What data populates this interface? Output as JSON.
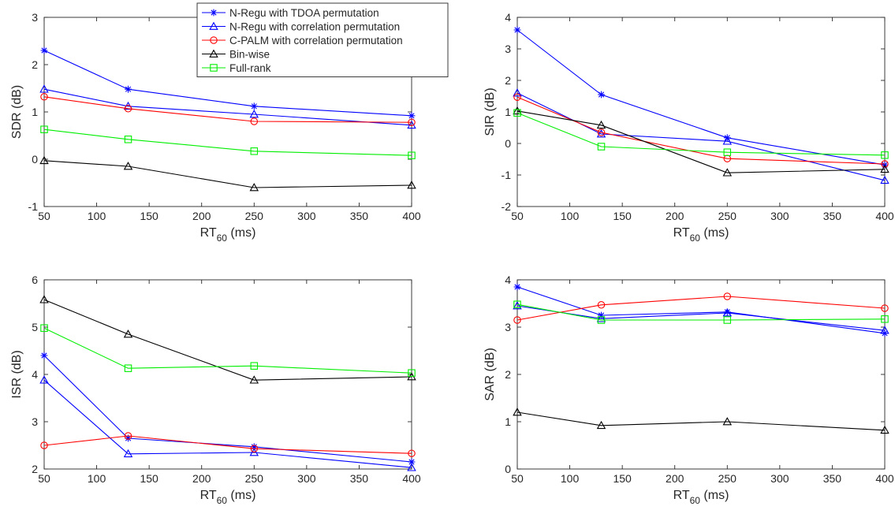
{
  "colors": {
    "n_regu_tdoa": "#0000ff",
    "n_regu_corr": "#0000ff",
    "cpalm": "#ff0000",
    "binwise": "#000000",
    "fullrank": "#00ee00"
  },
  "legend": {
    "placement": "top-right of first panel",
    "entries": [
      "N-Regu with TDOA permutation",
      "N-Regu with correlation permutation",
      "C-PALM with correlation permutation",
      "Bin-wise",
      "Full-rank"
    ]
  },
  "chart_data": [
    {
      "type": "line",
      "title": "",
      "xlabel": "RT",
      "xlabel_sub": "60",
      "xlabel_unit": " (ms)",
      "ylabel": "SDR (dB)",
      "x": [
        50,
        130,
        250,
        400
      ],
      "xlim": [
        50,
        400
      ],
      "xticks": [
        50,
        100,
        150,
        200,
        250,
        300,
        350,
        400
      ],
      "ylim": [
        -1,
        3
      ],
      "yticks": [
        -1,
        0,
        1,
        2,
        3
      ],
      "grid": false,
      "series": [
        {
          "name": "N-Regu with TDOA permutation",
          "marker": "star",
          "color": "#0000ff",
          "values": [
            2.3,
            1.48,
            1.12,
            0.92
          ]
        },
        {
          "name": "N-Regu with correlation permutation",
          "marker": "triangle",
          "color": "#0000ff",
          "values": [
            1.48,
            1.12,
            0.95,
            0.72
          ]
        },
        {
          "name": "C-PALM with correlation permutation",
          "marker": "circle",
          "color": "#ff0000",
          "values": [
            1.32,
            1.07,
            0.8,
            0.78
          ]
        },
        {
          "name": "Bin-wise",
          "marker": "triangle",
          "color": "#000000",
          "values": [
            -0.03,
            -0.15,
            -0.6,
            -0.55
          ]
        },
        {
          "name": "Full-rank",
          "marker": "square",
          "color": "#00ee00",
          "values": [
            0.63,
            0.42,
            0.17,
            0.08
          ]
        }
      ]
    },
    {
      "type": "line",
      "title": "",
      "xlabel": "RT",
      "xlabel_sub": "60",
      "xlabel_unit": " (ms)",
      "ylabel": "SIR (dB)",
      "x": [
        50,
        130,
        250,
        400
      ],
      "xlim": [
        50,
        400
      ],
      "xticks": [
        50,
        100,
        150,
        200,
        250,
        300,
        350,
        400
      ],
      "ylim": [
        -2,
        4
      ],
      "yticks": [
        -2,
        -1,
        0,
        1,
        2,
        3,
        4
      ],
      "grid": false,
      "series": [
        {
          "name": "N-Regu with TDOA permutation",
          "marker": "star",
          "color": "#0000ff",
          "values": [
            3.6,
            1.55,
            0.18,
            -0.68
          ]
        },
        {
          "name": "N-Regu with correlation permutation",
          "marker": "triangle",
          "color": "#0000ff",
          "values": [
            1.6,
            0.3,
            0.07,
            -1.17
          ]
        },
        {
          "name": "C-PALM with correlation permutation",
          "marker": "circle",
          "color": "#ff0000",
          "values": [
            1.47,
            0.35,
            -0.48,
            -0.65
          ]
        },
        {
          "name": "Bin-wise",
          "marker": "triangle",
          "color": "#000000",
          "values": [
            1.03,
            0.58,
            -0.93,
            -0.82
          ]
        },
        {
          "name": "Full-rank",
          "marker": "square",
          "color": "#00ee00",
          "values": [
            0.97,
            -0.1,
            -0.28,
            -0.37
          ]
        }
      ]
    },
    {
      "type": "line",
      "title": "",
      "xlabel": "RT",
      "xlabel_sub": "60",
      "xlabel_unit": " (ms)",
      "ylabel": "ISR (dB)",
      "x": [
        50,
        130,
        250,
        400
      ],
      "xlim": [
        50,
        400
      ],
      "xticks": [
        50,
        100,
        150,
        200,
        250,
        300,
        350,
        400
      ],
      "ylim": [
        2,
        6
      ],
      "yticks": [
        2,
        3,
        4,
        5,
        6
      ],
      "grid": false,
      "series": [
        {
          "name": "N-Regu with TDOA permutation",
          "marker": "star",
          "color": "#0000ff",
          "values": [
            4.4,
            2.65,
            2.47,
            2.15
          ]
        },
        {
          "name": "N-Regu with correlation permutation",
          "marker": "triangle",
          "color": "#0000ff",
          "values": [
            3.88,
            2.32,
            2.35,
            2.03
          ]
        },
        {
          "name": "C-PALM with correlation permutation",
          "marker": "circle",
          "color": "#ff0000",
          "values": [
            2.5,
            2.7,
            2.43,
            2.33
          ]
        },
        {
          "name": "Bin-wise",
          "marker": "triangle",
          "color": "#000000",
          "values": [
            5.58,
            4.85,
            3.88,
            3.95
          ]
        },
        {
          "name": "Full-rank",
          "marker": "square",
          "color": "#00ee00",
          "values": [
            4.98,
            4.13,
            4.18,
            4.03
          ]
        }
      ]
    },
    {
      "type": "line",
      "title": "",
      "xlabel": "RT",
      "xlabel_sub": "60",
      "xlabel_unit": " (ms)",
      "ylabel": "SAR (dB)",
      "x": [
        50,
        130,
        250,
        400
      ],
      "xlim": [
        50,
        400
      ],
      "xticks": [
        50,
        100,
        150,
        200,
        250,
        300,
        350,
        400
      ],
      "ylim": [
        0,
        4
      ],
      "yticks": [
        0,
        1,
        2,
        3,
        4
      ],
      "grid": false,
      "series": [
        {
          "name": "N-Regu with TDOA permutation",
          "marker": "star",
          "color": "#0000ff",
          "values": [
            3.85,
            3.25,
            3.32,
            2.87
          ]
        },
        {
          "name": "N-Regu with correlation permutation",
          "marker": "triangle",
          "color": "#0000ff",
          "values": [
            3.45,
            3.18,
            3.3,
            2.93
          ]
        },
        {
          "name": "C-PALM with correlation permutation",
          "marker": "circle",
          "color": "#ff0000",
          "values": [
            3.15,
            3.47,
            3.65,
            3.4
          ]
        },
        {
          "name": "Bin-wise",
          "marker": "triangle",
          "color": "#000000",
          "values": [
            1.2,
            0.92,
            1.0,
            0.82
          ]
        },
        {
          "name": "Full-rank",
          "marker": "square",
          "color": "#00ee00",
          "values": [
            3.48,
            3.15,
            3.15,
            3.17
          ]
        }
      ]
    }
  ]
}
